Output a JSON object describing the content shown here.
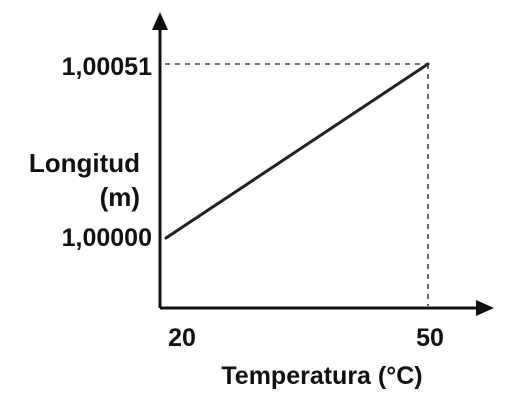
{
  "chart_data": {
    "type": "line",
    "xlabel": "Temperatura (°C)",
    "ylabel_lines": [
      "Longitud",
      "(m)"
    ],
    "x_ticks": [
      20,
      50
    ],
    "y_ticks": [
      "1,00000",
      "1,00051"
    ],
    "x_tick_labels": [
      "20",
      "50"
    ],
    "series": [
      {
        "x": [
          20,
          50
        ],
        "y": [
          1.0,
          1.00051
        ]
      }
    ],
    "grid": false,
    "legend": "none"
  }
}
